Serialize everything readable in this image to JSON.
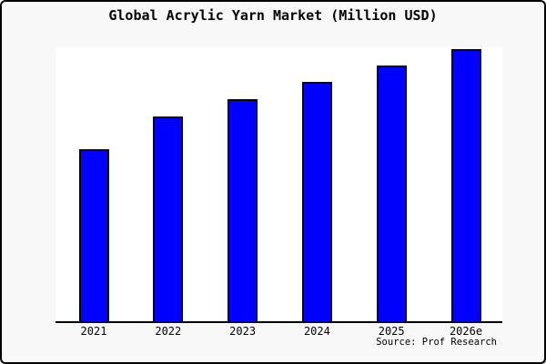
{
  "title": "Global Acrylic Yarn Market (Million USD)",
  "source_note": "Source: Prof Research",
  "colors": {
    "bar_fill": "#0000ff",
    "bar_border": "#000000",
    "page_background": "#f8f8f8",
    "plot_background": "#ffffff",
    "axis_line": "#000000",
    "text": "#000000",
    "frame_border": "#000000"
  },
  "chart_data": {
    "type": "bar",
    "title": "Global Acrylic Yarn Market (Million USD)",
    "categories": [
      "2021",
      "2022",
      "2023",
      "2024",
      "2025",
      "2026e"
    ],
    "values": [
      62.7,
      74.9,
      81.1,
      87.5,
      93.5,
      99.2
    ],
    "value_note": "y-axis has no tick labels; values are relative heights (percent of plot height)",
    "xlabel": "",
    "ylabel": "",
    "ylim": [
      0,
      100
    ],
    "grid": false,
    "legend": false,
    "bar_color": "#0000ff",
    "annotations": [
      "Source: Prof Research"
    ]
  }
}
